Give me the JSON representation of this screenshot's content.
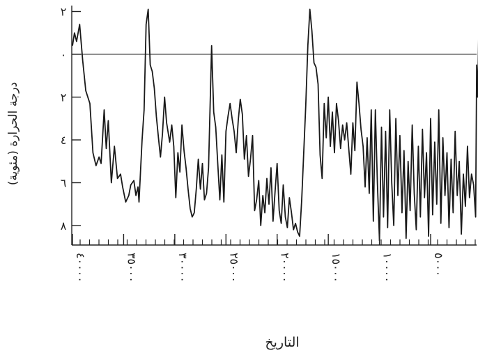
{
  "chart_data": {
    "type": "line",
    "xlabel": "التاريخ",
    "ylabel": "درجة الحرارة (مئوية)",
    "x_ticks": [
      40000,
      35000,
      30000,
      25000,
      20000,
      15000,
      10000,
      5000
    ],
    "x_tick_labels": [
      "٤٠٠٠٠",
      "٣٥٠٠٠",
      "٣٠٠٠٠",
      "٢٥٠٠٠",
      "٢٠٠٠٠",
      "١٥٠٠٠",
      "١٠٠٠٠",
      "٥٠٠٠"
    ],
    "xlim": [
      40000,
      0
    ],
    "y_ticks": [
      2,
      0,
      -2,
      -4,
      -6,
      -8
    ],
    "y_tick_labels": [
      "٢",
      "٠",
      "٢",
      "٤",
      "٦",
      "٨"
    ],
    "ylim": [
      -9,
      2.2
    ],
    "reference_line_y": 0,
    "series": [
      {
        "points": [
          [
            40000,
            0.4
          ],
          [
            39800,
            1.0
          ],
          [
            39600,
            0.6
          ],
          [
            39300,
            1.4
          ],
          [
            39000,
            -0.3
          ],
          [
            38700,
            -1.7
          ],
          [
            38300,
            -2.3
          ],
          [
            38000,
            -4.6
          ],
          [
            37700,
            -5.2
          ],
          [
            37400,
            -4.8
          ],
          [
            37200,
            -5.1
          ],
          [
            36900,
            -2.6
          ],
          [
            36700,
            -4.4
          ],
          [
            36500,
            -3.1
          ],
          [
            36200,
            -6.0
          ],
          [
            35900,
            -4.3
          ],
          [
            35600,
            -5.8
          ],
          [
            35300,
            -5.6
          ],
          [
            35100,
            -6.2
          ],
          [
            34800,
            -6.9
          ],
          [
            34500,
            -6.6
          ],
          [
            34300,
            -6.1
          ],
          [
            34000,
            -5.9
          ],
          [
            33800,
            -6.6
          ],
          [
            33600,
            -6.2
          ],
          [
            33500,
            -6.9
          ],
          [
            33200,
            -4.0
          ],
          [
            33000,
            -2.6
          ],
          [
            32800,
            1.4
          ],
          [
            32600,
            2.1
          ],
          [
            32400,
            -0.5
          ],
          [
            32200,
            -0.8
          ],
          [
            32000,
            -1.6
          ],
          [
            31800,
            -2.9
          ],
          [
            31600,
            -3.9
          ],
          [
            31400,
            -4.8
          ],
          [
            31200,
            -3.7
          ],
          [
            31000,
            -2.0
          ],
          [
            30800,
            -3.2
          ],
          [
            30500,
            -4.1
          ],
          [
            30300,
            -3.3
          ],
          [
            30100,
            -4.3
          ],
          [
            29900,
            -6.7
          ],
          [
            29700,
            -4.6
          ],
          [
            29500,
            -5.5
          ],
          [
            29300,
            -3.3
          ],
          [
            29100,
            -4.5
          ],
          [
            28900,
            -5.3
          ],
          [
            28700,
            -6.3
          ],
          [
            28500,
            -7.2
          ],
          [
            28300,
            -7.6
          ],
          [
            28100,
            -7.4
          ],
          [
            27900,
            -6.3
          ],
          [
            27700,
            -4.9
          ],
          [
            27500,
            -6.3
          ],
          [
            27300,
            -5.1
          ],
          [
            27100,
            -6.8
          ],
          [
            26900,
            -6.5
          ],
          [
            26700,
            -5.3
          ],
          [
            26400,
            0.4
          ],
          [
            26200,
            -2.7
          ],
          [
            26000,
            -3.4
          ],
          [
            25800,
            -5.1
          ],
          [
            25600,
            -6.8
          ],
          [
            25400,
            -4.7
          ],
          [
            25200,
            -6.9
          ],
          [
            25000,
            -3.6
          ],
          [
            24800,
            -2.9
          ],
          [
            24600,
            -2.3
          ],
          [
            24400,
            -3.0
          ],
          [
            24200,
            -3.6
          ],
          [
            24000,
            -4.6
          ],
          [
            23800,
            -3.1
          ],
          [
            23600,
            -2.1
          ],
          [
            23400,
            -2.8
          ],
          [
            23200,
            -4.9
          ],
          [
            23000,
            -3.8
          ],
          [
            22800,
            -5.7
          ],
          [
            22600,
            -4.9
          ],
          [
            22400,
            -3.8
          ],
          [
            22200,
            -7.3
          ],
          [
            22000,
            -6.8
          ],
          [
            21800,
            -5.9
          ],
          [
            21600,
            -8.0
          ],
          [
            21400,
            -6.6
          ],
          [
            21200,
            -7.4
          ],
          [
            21000,
            -5.8
          ],
          [
            20800,
            -7.0
          ],
          [
            20600,
            -5.3
          ],
          [
            20400,
            -7.8
          ],
          [
            20200,
            -6.4
          ],
          [
            20000,
            -5.1
          ],
          [
            19800,
            -7.3
          ],
          [
            19600,
            -7.9
          ],
          [
            19400,
            -6.1
          ],
          [
            19200,
            -7.6
          ],
          [
            19000,
            -8.1
          ],
          [
            18800,
            -6.7
          ],
          [
            18600,
            -7.4
          ],
          [
            18400,
            -8.2
          ],
          [
            18200,
            -7.9
          ],
          [
            18000,
            -8.3
          ],
          [
            17800,
            -8.5
          ],
          [
            17600,
            -6.8
          ],
          [
            17400,
            -4.6
          ],
          [
            17200,
            -2.4
          ],
          [
            17000,
            0.4
          ],
          [
            16800,
            2.1
          ],
          [
            16600,
            1.1
          ],
          [
            16400,
            -0.4
          ],
          [
            16200,
            -0.6
          ],
          [
            16000,
            -1.4
          ],
          [
            15800,
            -4.7
          ],
          [
            15600,
            -5.8
          ],
          [
            15400,
            -2.3
          ],
          [
            15200,
            -3.9
          ],
          [
            15000,
            -2.0
          ],
          [
            14800,
            -4.3
          ],
          [
            14600,
            -2.7
          ],
          [
            14400,
            -4.6
          ],
          [
            14200,
            -2.3
          ],
          [
            14000,
            -3.1
          ],
          [
            13800,
            -4.4
          ],
          [
            13600,
            -3.3
          ],
          [
            13400,
            -4.0
          ],
          [
            13200,
            -3.2
          ],
          [
            13000,
            -4.4
          ],
          [
            12800,
            -5.6
          ],
          [
            12600,
            -3.2
          ],
          [
            12400,
            -4.5
          ],
          [
            12200,
            -1.3
          ],
          [
            12000,
            -2.3
          ],
          [
            11800,
            -3.5
          ],
          [
            11600,
            -4.3
          ],
          [
            11400,
            -6.2
          ],
          [
            11200,
            -3.9
          ],
          [
            11000,
            -6.5
          ],
          [
            10800,
            -2.6
          ],
          [
            10600,
            -7.8
          ],
          [
            10400,
            -2.6
          ],
          [
            10200,
            -6.0
          ],
          [
            10000,
            -8.7
          ],
          [
            9800,
            -3.4
          ],
          [
            9600,
            -7.6
          ],
          [
            9400,
            -3.6
          ],
          [
            9200,
            -8.1
          ],
          [
            9000,
            -2.6
          ],
          [
            8800,
            -6.0
          ],
          [
            8600,
            -8.0
          ],
          [
            8400,
            -3.0
          ],
          [
            8200,
            -6.6
          ],
          [
            8000,
            -3.8
          ],
          [
            7800,
            -7.4
          ],
          [
            7600,
            -4.5
          ],
          [
            7400,
            -8.6
          ],
          [
            7200,
            -5.0
          ],
          [
            7000,
            -7.3
          ],
          [
            6800,
            -3.3
          ],
          [
            6600,
            -6.5
          ],
          [
            6400,
            -8.2
          ],
          [
            6200,
            -4.3
          ],
          [
            6000,
            -7.6
          ],
          [
            5800,
            -3.5
          ],
          [
            5600,
            -6.7
          ],
          [
            5400,
            -4.6
          ],
          [
            5200,
            -8.5
          ],
          [
            5000,
            -3.0
          ],
          [
            4800,
            -7.5
          ],
          [
            4600,
            -4.1
          ],
          [
            4400,
            -7.0
          ],
          [
            4200,
            -2.6
          ],
          [
            4000,
            -7.9
          ],
          [
            3800,
            -3.9
          ],
          [
            3600,
            -6.6
          ],
          [
            3400,
            -4.6
          ],
          [
            3200,
            -8.1
          ],
          [
            3000,
            -4.9
          ],
          [
            2800,
            -7.4
          ],
          [
            2600,
            -3.6
          ],
          [
            2400,
            -6.6
          ],
          [
            2200,
            -5.0
          ],
          [
            2000,
            -8.4
          ],
          [
            1800,
            -5.6
          ],
          [
            1600,
            -7.1
          ],
          [
            1400,
            -4.3
          ],
          [
            1200,
            -6.7
          ],
          [
            1000,
            -5.6
          ],
          [
            800,
            -6.1
          ],
          [
            600,
            -7.6
          ],
          [
            500,
            -0.5
          ],
          [
            400,
            -2.0
          ],
          [
            300,
            0.9
          ],
          [
            200,
            -0.7
          ],
          [
            100,
            0.5
          ],
          [
            50,
            -0.3
          ],
          [
            0,
            0.4
          ]
        ]
      }
    ]
  }
}
